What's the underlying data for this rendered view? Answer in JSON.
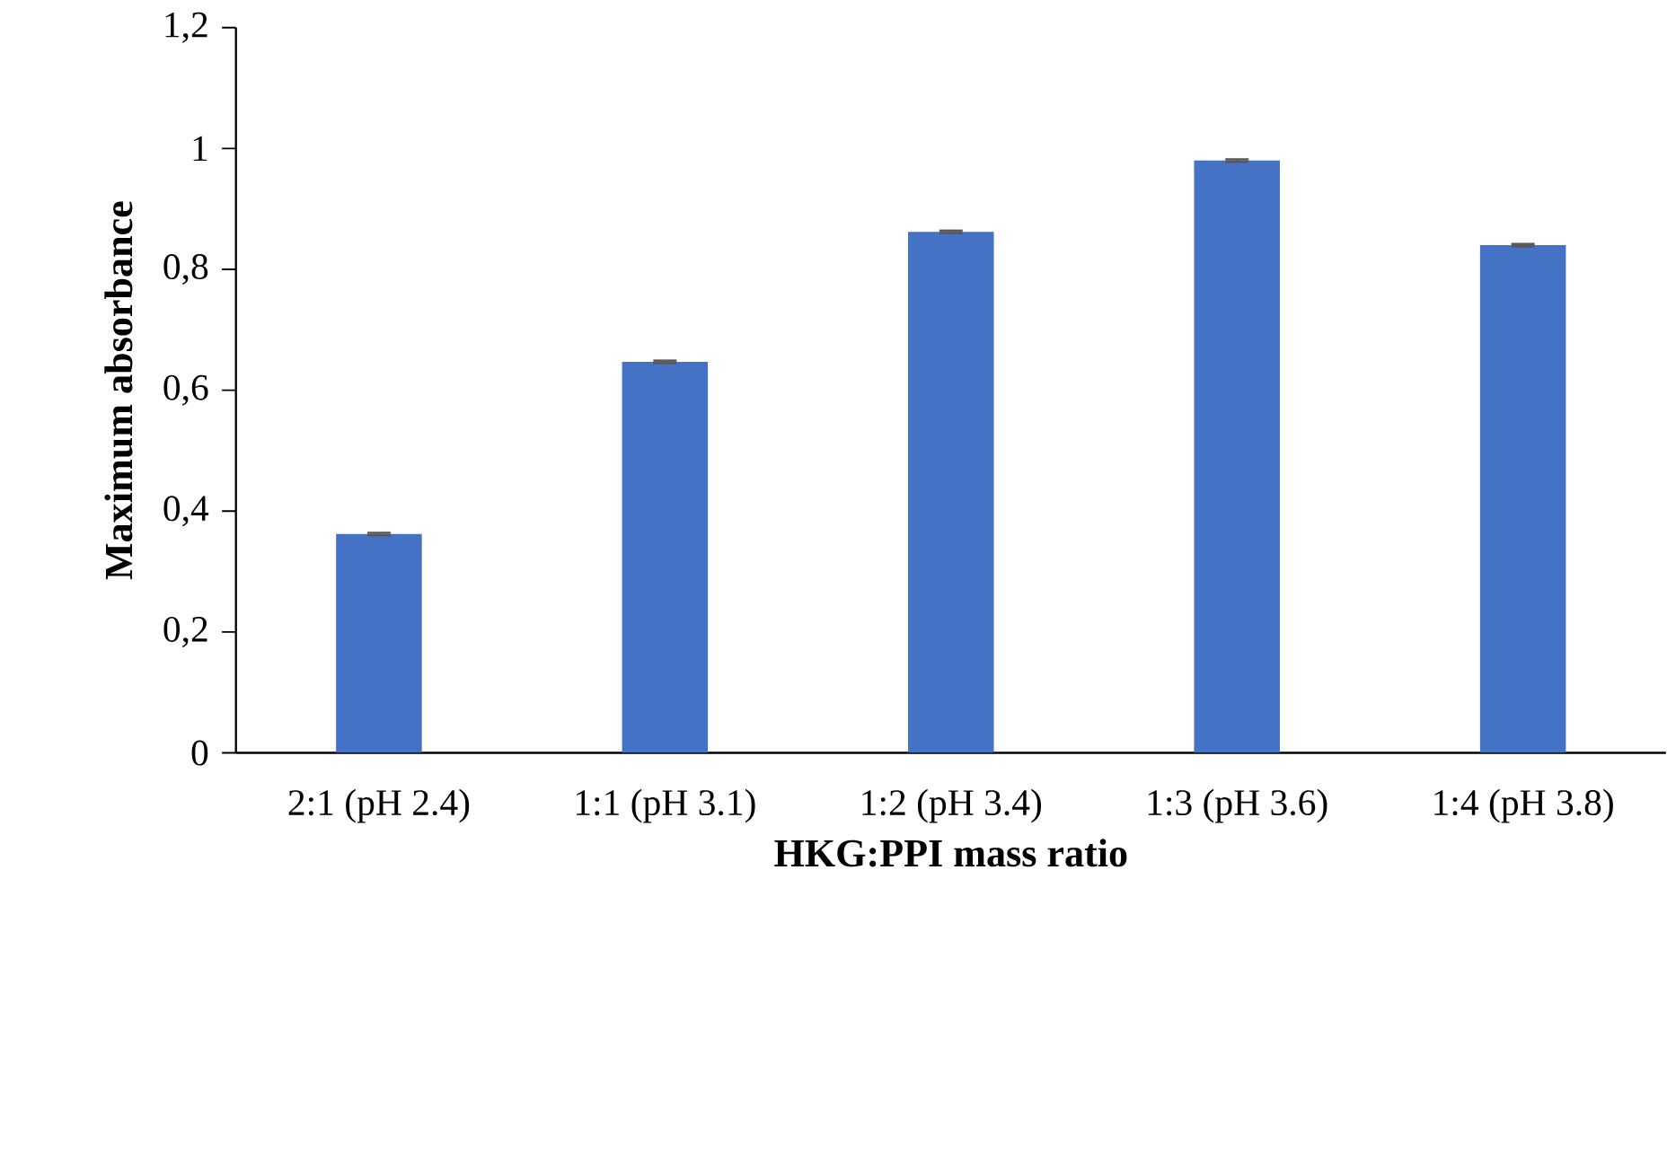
{
  "chart_data": {
    "type": "bar",
    "xlabel": "HKG:PPI mass ratio",
    "ylabel": "Maximum absorbance",
    "categories": [
      "2:1 (pH 2.4)",
      "1:1 (pH 3.1)",
      "1:2 (pH 3.4)",
      "1:3 (pH 3.6)",
      "1:4 (pH 3.8)"
    ],
    "values": [
      0.362,
      0.647,
      0.862,
      0.98,
      0.84
    ],
    "errors": [
      0.002,
      0.002,
      0.002,
      0.002,
      0.002
    ],
    "color": "#4472c4",
    "ylim": [
      0,
      1.2
    ],
    "yticks": [
      0,
      {
        "value": 0.2,
        "label": "0,2"
      },
      {
        "value": 0.4,
        "label": "0,4"
      },
      {
        "value": 0.6,
        "label": "0,6"
      },
      {
        "value": 0.8,
        "label": "0,8"
      },
      1,
      {
        "value": 1.2,
        "label": "1,2"
      }
    ],
    "grid": false,
    "legend": false
  }
}
